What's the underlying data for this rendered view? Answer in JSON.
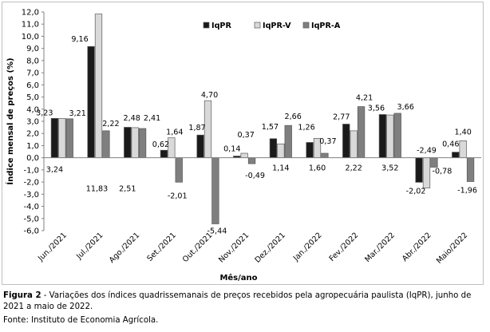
{
  "chart_data": {
    "type": "bar",
    "title": "",
    "xlabel": "Mês/ano",
    "ylabel": "Índice mensal de preços (%)",
    "ylim": [
      -6,
      12
    ],
    "yticks": [
      "-6,0",
      "-5,0",
      "-4,0",
      "-3,0",
      "-2,0",
      "-1,0",
      "0,0",
      "1,0",
      "2,0",
      "3,0",
      "4,0",
      "5,0",
      "6,0",
      "7,0",
      "8,0",
      "9,0",
      "10,0",
      "11,0",
      "12,0"
    ],
    "categories": [
      "Jun./2021",
      "Jul./2021",
      "Ago./2021",
      "Set./2021",
      "Out./2021",
      "Nov./2021",
      "Dez./2021",
      "Jan./2022",
      "Fev./2022",
      "Mar./2022",
      "Abr./2022",
      "Maio/2022"
    ],
    "series": [
      {
        "name": "IqPR",
        "color": "#1a1a1a",
        "values": [
          3.24,
          9.16,
          2.51,
          0.62,
          1.87,
          0.14,
          1.57,
          1.26,
          2.77,
          3.56,
          -2.02,
          0.46
        ]
      },
      {
        "name": "IqPR-V",
        "color": "#d9d9d9",
        "values": [
          3.23,
          11.83,
          2.48,
          1.64,
          4.7,
          0.37,
          1.14,
          1.6,
          2.22,
          3.52,
          -2.49,
          1.4
        ]
      },
      {
        "name": "IqPR-A",
        "color": "#7f7f7f",
        "values": [
          3.21,
          2.22,
          2.41,
          -2.01,
          -5.44,
          -0.49,
          2.66,
          0.37,
          4.21,
          3.66,
          -0.78,
          -1.96
        ]
      }
    ],
    "labels": [
      [
        "3,24",
        "3,23",
        "3,21"
      ],
      [
        "9,16",
        "11,83",
        "2,22"
      ],
      [
        "2,51",
        "2,48",
        "2,41"
      ],
      [
        "0,62",
        "1,64",
        "-2,01"
      ],
      [
        "1,87",
        "4,70",
        "-5,44"
      ],
      [
        "0,14",
        "0,37",
        "-0,49"
      ],
      [
        "1,57",
        "1,14",
        "2,66"
      ],
      [
        "1,26",
        "1,60",
        "0,37"
      ],
      [
        "2,77",
        "2,22",
        "4,21"
      ],
      [
        "3,56",
        "3,52",
        "3,66"
      ],
      [
        "-2,02",
        "-2,49",
        "-0,78"
      ],
      [
        "0,46",
        "1,40",
        "-1,96"
      ]
    ],
    "grid": false,
    "legend": "top"
  },
  "caption": {
    "label": "Figura 2",
    "text": " - Variações dos índices quadrissemanais de preços recebidos pela agropecuária paulista (IqPR), junho de 2021 a maio de 2022."
  },
  "source": "Fonte: Instituto de Economia Agrícola."
}
